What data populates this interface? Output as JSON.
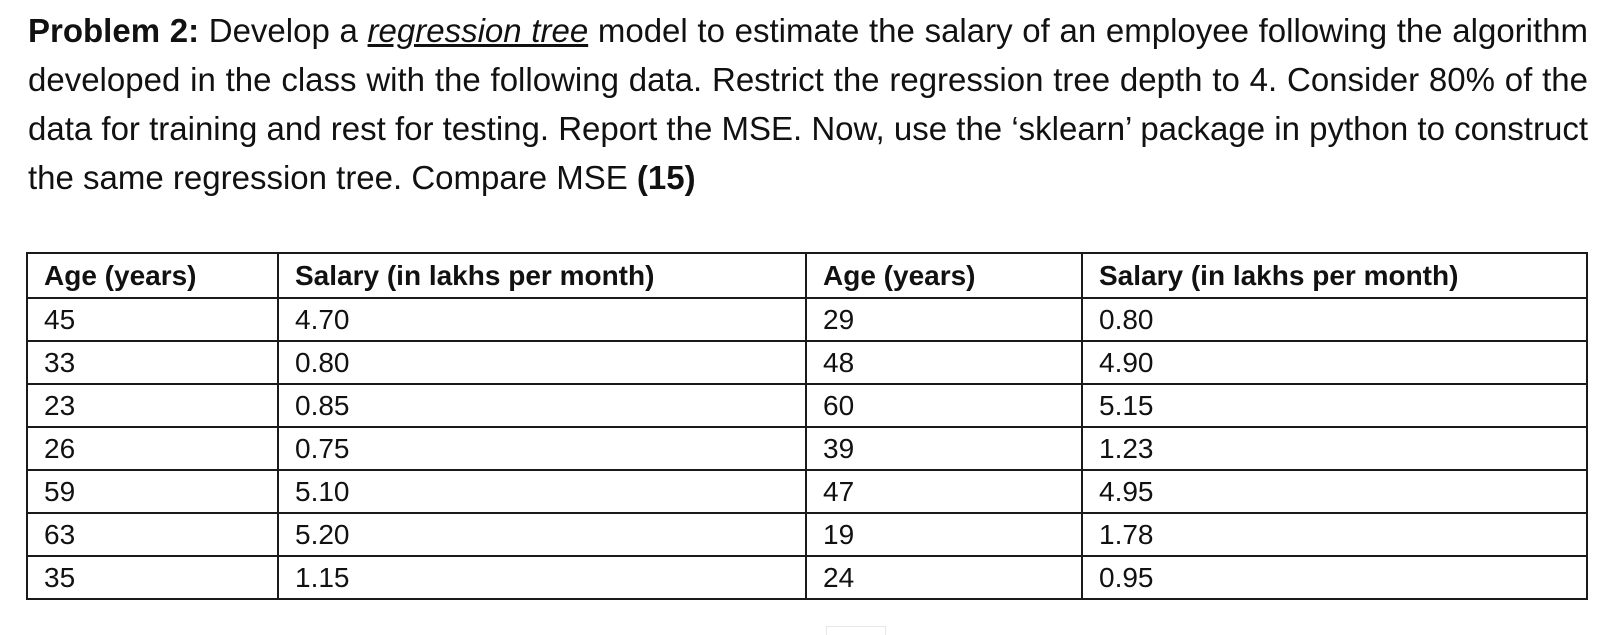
{
  "problem": {
    "label": "Problem 2:",
    "text_before": " Develop a ",
    "term": "regression tree",
    "text_after": " model to estimate the salary of an employee following the algorithm developed in the class with the following data. Restrict the regression tree depth to 4. Consider 80% of the data for training and rest for testing. Report the MSE. Now, use the ‘sklearn’ package in python to construct the same regression tree. Compare MSE ",
    "marks": "(15)"
  },
  "table": {
    "headers": [
      "Age (years)",
      "Salary (in lakhs per month)",
      "Age (years)",
      "Salary (in lakhs per month)"
    ],
    "rows": [
      [
        "45",
        "4.70",
        "29",
        "0.80"
      ],
      [
        "33",
        "0.80",
        "48",
        "4.90"
      ],
      [
        "23",
        "0.85",
        "60",
        "5.15"
      ],
      [
        "26",
        "0.75",
        "39",
        "1.23"
      ],
      [
        "59",
        "5.10",
        "47",
        "4.95"
      ],
      [
        "63",
        "5.20",
        "19",
        "1.78"
      ],
      [
        "35",
        "1.15",
        "24",
        "0.95"
      ]
    ]
  }
}
